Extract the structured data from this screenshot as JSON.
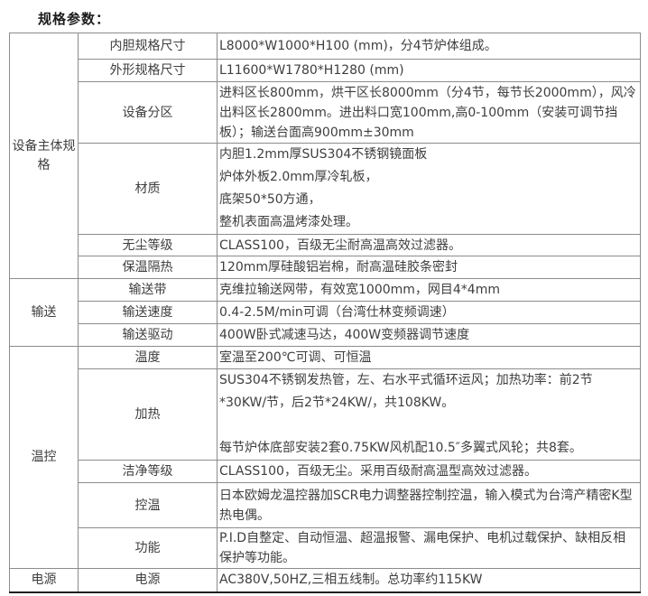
{
  "page_title": "规格参数：",
  "colors": {
    "text": "#3e3e3e",
    "title_text": "#1c1c1c",
    "table_border": "#8c8c8c",
    "table_bottom_border": "#1f1f1f",
    "background": "#ffffff"
  },
  "table": {
    "columns": [
      "category",
      "parameter",
      "value"
    ],
    "groups": [
      {
        "category": "设备主体规格",
        "rows": [
          {
            "name": "内胆规格尺寸",
            "value": "L8000*W1000*H100 (mm)，分4节炉体组成。"
          },
          {
            "name": "外形规格尺寸",
            "value": "L11600*W1780*H1280 (mm)"
          },
          {
            "name": "设备分区",
            "value": "进料区长800mm，烘干区长8000mm（分4节，每节长2000mm），风冷出料区长2800mm。进出料口宽100mm,高0-100mm（安装可调节挡板）；输送台面高900mm±30mm"
          },
          {
            "name": "材质",
            "lines": [
              "内胆1.2mm厚SUS304不锈钢镜面板",
              "炉体外板2.0mm厚冷轧板，",
              "底架50*50方通，",
              "整机表面高温烤漆处理。"
            ]
          },
          {
            "name": "无尘等级",
            "value": "CLASS100，百级无尘耐高温高效过滤器。"
          },
          {
            "name": "保温隔热",
            "value": "120mm厚硅酸铝岩棉，耐高温硅胶条密封"
          }
        ]
      },
      {
        "category": "输送",
        "rows": [
          {
            "name": "输送带",
            "value": "克维拉输送网带，有效宽1000mm，网目4*4mm"
          },
          {
            "name": "输送速度",
            "value": "0.4-2.5M/min可调（台湾仕林变频调速）"
          },
          {
            "name": "输送驱动",
            "value": "400W卧式减速马达，400W变频器调节速度"
          }
        ]
      },
      {
        "category": "温控",
        "rows": [
          {
            "name": "温度",
            "value": "室温至200℃可调、可恒温"
          },
          {
            "name": "加热",
            "wrap_lines": [
              "SUS304不锈钢发热管，左、右水平式循环运风；加热功率：前2节*30KW/节，后2节*24KW/，共108KW。",
              "",
              "每节炉体底部安装2套0.75KW风机配10.5″多翼式风轮；共8套。"
            ]
          },
          {
            "name": "洁净等级",
            "value": "CLASS100，百级无尘。采用百级耐高温型高效过滤器。"
          },
          {
            "name": "控温",
            "value": "日本欧姆龙温控器加SCR电力调整器控制控温，输入模式为台湾产精密K型热电偶。"
          },
          {
            "name": "功能",
            "value": "P.I.D自整定、自动恒温、超温报警、漏电保护、电机过载保护、缺相反相保护等功能。"
          }
        ]
      },
      {
        "category": "电源",
        "rows": [
          {
            "name": "电源",
            "value": "AC380V,50HZ,三相五线制。总功率约115KW"
          }
        ]
      }
    ]
  }
}
